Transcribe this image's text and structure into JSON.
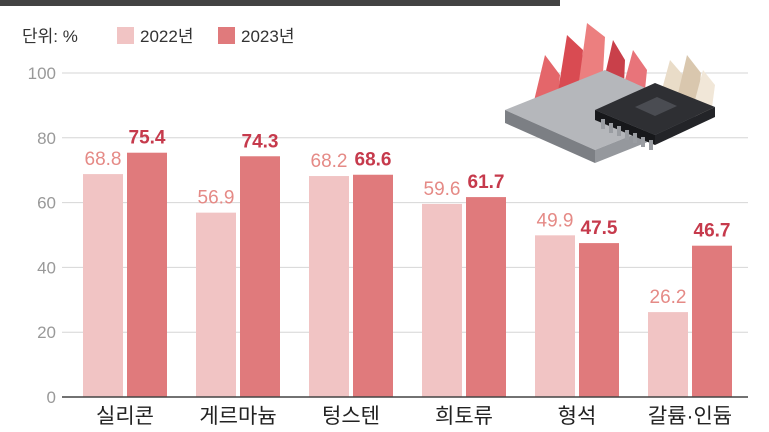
{
  "chart_data": {
    "type": "bar",
    "unit_label": "단위: %",
    "categories": [
      "실리콘",
      "게르마늄",
      "텅스텐",
      "희토류",
      "형석",
      "갈륨·인듐"
    ],
    "series": [
      {
        "name": "2022년",
        "values": [
          68.8,
          56.9,
          68.2,
          59.6,
          49.9,
          26.2
        ],
        "color": "#f1c4c4"
      },
      {
        "name": "2023년",
        "values": [
          75.4,
          74.3,
          68.6,
          61.7,
          47.5,
          46.7
        ],
        "color": "#e07a7c"
      }
    ],
    "y_ticks": [
      0,
      20,
      40,
      60,
      80,
      100
    ],
    "ylim": [
      0,
      100
    ],
    "grid": true,
    "legend_position": "top-left",
    "value_label_colors": {
      "2022년": "#e58a86",
      "2023년": "#c63a4c"
    }
  },
  "illustration": {
    "name": "semiconductor-chip-with-crystals-illustration"
  }
}
